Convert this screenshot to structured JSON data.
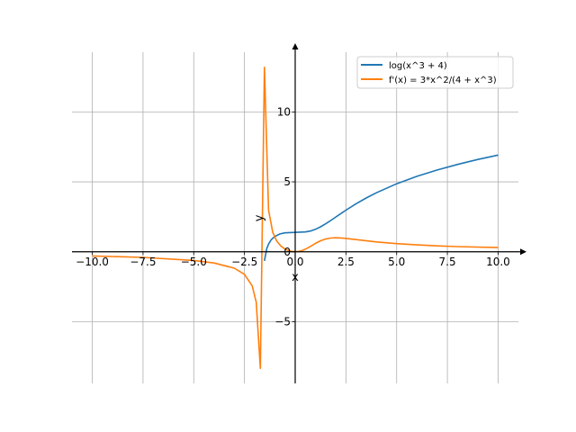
{
  "chart_data": {
    "type": "line",
    "title": "",
    "xlabel": "x",
    "ylabel": "y",
    "xlim": [
      -11,
      11
    ],
    "ylim": [
      -9.41,
      14.27
    ],
    "grid": true,
    "legend_position": "top-right",
    "x_ticks": [
      -10,
      -7.5,
      -5,
      -2.5,
      0,
      2.5,
      5,
      7.5,
      10
    ],
    "x_tick_labels": [
      "−10.0",
      "−7.5",
      "−5.0",
      "−2.5",
      "0.0",
      "2.5",
      "5.0",
      "7.5",
      "10.0"
    ],
    "y_ticks": [
      -5,
      0,
      5,
      10
    ],
    "y_tick_labels": [
      "−5",
      "0",
      "5",
      "10"
    ],
    "series": [
      {
        "name": "log(x^3 + 4)",
        "color": "#1f77b4",
        "x": [
          -1.515,
          -1.4,
          -1.313,
          -1.2,
          -1.111,
          -1,
          -0.75,
          -0.5,
          0,
          0.5,
          0.75,
          1,
          1.25,
          1.5,
          1.75,
          2,
          2.5,
          3,
          3.5,
          4,
          5,
          6,
          7,
          8,
          9,
          10
        ],
        "y": [
          -0.65,
          0.228,
          0.552,
          0.821,
          0.966,
          1.099,
          1.275,
          1.355,
          1.386,
          1.417,
          1.487,
          1.609,
          1.784,
          1.998,
          2.236,
          2.485,
          2.977,
          3.434,
          3.848,
          4.22,
          4.86,
          5.394,
          5.849,
          6.246,
          6.597,
          6.912
        ]
      },
      {
        "name": "f'(x) = 3*x^2/(4 + x^3)",
        "color": "#ff7f0e",
        "x": [
          -10,
          -7.5,
          -5,
          -4,
          -3,
          -2.5,
          -2.121,
          -1.919,
          -1.717,
          -1.515,
          -1.313,
          -1.111,
          -0.909,
          -0.707,
          -0.505,
          -0.303,
          -0.101,
          0.101,
          0.303,
          0.5,
          0.75,
          1,
          1.25,
          1.5,
          1.75,
          2,
          2.25,
          2.5,
          3,
          4,
          5,
          6,
          7,
          8,
          10
        ],
        "y": [
          -0.301,
          -0.404,
          -0.62,
          -0.8,
          -1.174,
          -1.613,
          -2.435,
          -3.6,
          -8.33,
          13.19,
          2.98,
          1.41,
          0.763,
          0.411,
          0.198,
          0.069,
          0.008,
          0.008,
          0.068,
          0.182,
          0.382,
          0.6,
          0.788,
          0.915,
          0.981,
          1.0,
          0.987,
          0.955,
          0.871,
          0.706,
          0.581,
          0.491,
          0.424,
          0.372,
          0.299
        ]
      }
    ]
  }
}
